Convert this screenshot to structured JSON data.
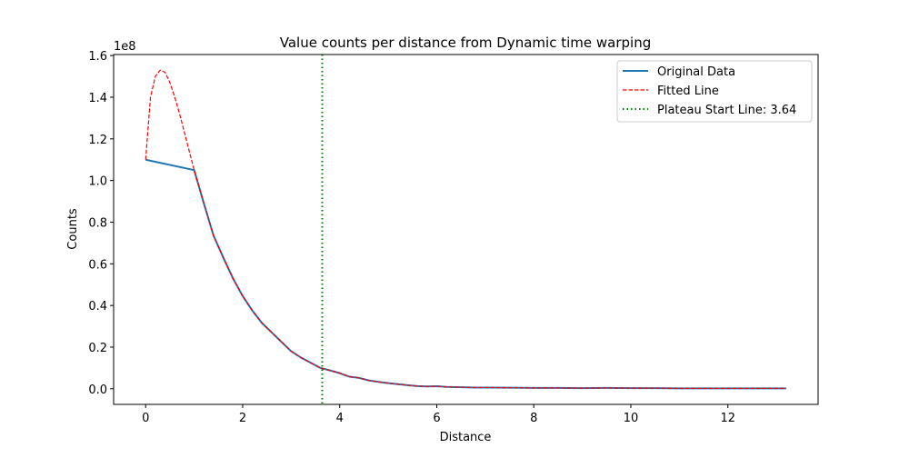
{
  "chart_data": {
    "type": "line",
    "title": "Value counts per distance from Dynamic time warping",
    "xlabel": "Distance",
    "ylabel": "Counts",
    "y_offset_label": "1e8",
    "xlim": [
      -0.66,
      13.86
    ],
    "ylim": [
      -0.075,
      1.605
    ],
    "y_scale": 100000000,
    "x_ticks": [
      0,
      2,
      4,
      6,
      8,
      10,
      12
    ],
    "y_ticks": [
      0.0,
      0.2,
      0.4,
      0.6,
      0.8,
      1.0,
      1.2,
      1.4,
      1.6
    ],
    "x_tick_labels": [
      "0",
      "2",
      "4",
      "6",
      "8",
      "10",
      "12"
    ],
    "y_tick_labels": [
      "0.0",
      "0.2",
      "0.4",
      "0.6",
      "0.8",
      "1.0",
      "1.2",
      "1.4",
      "1.6"
    ],
    "legend_position": "top-right",
    "colors": {
      "original": "#1f77b4",
      "fitted": "#ff0000",
      "plateau": "#008000"
    },
    "series": [
      {
        "name": "Original Data",
        "style": "solid",
        "x": [
          0,
          1.0,
          1.2,
          1.4,
          1.6,
          1.8,
          2.0,
          2.2,
          2.4,
          2.6,
          2.8,
          3.0,
          3.2,
          3.4,
          3.6,
          3.8,
          4.0,
          4.2,
          4.4,
          4.6,
          4.8,
          5.0,
          5.2,
          5.4,
          5.6,
          5.8,
          6.0,
          6.2,
          6.4,
          6.6,
          6.8,
          7.0,
          7.5,
          8.0,
          8.5,
          9.0,
          9.5,
          10.0,
          10.5,
          11.0,
          11.5,
          12.0,
          12.5,
          13.2
        ],
        "y": [
          1.1,
          1.05,
          0.89,
          0.735,
          0.63,
          0.53,
          0.445,
          0.375,
          0.315,
          0.27,
          0.225,
          0.18,
          0.15,
          0.125,
          0.1,
          0.088,
          0.075,
          0.058,
          0.052,
          0.04,
          0.033,
          0.027,
          0.022,
          0.017,
          0.013,
          0.011,
          0.012,
          0.009,
          0.008,
          0.007,
          0.006,
          0.006,
          0.005,
          0.004,
          0.004,
          0.003,
          0.004,
          0.003,
          0.003,
          0.002,
          0.002,
          0.002,
          0.002,
          0.002
        ]
      },
      {
        "name": "Fitted Line",
        "style": "dashed",
        "x": [
          0,
          0.1,
          0.2,
          0.3,
          0.4,
          0.5,
          0.6,
          0.7,
          0.8,
          0.9,
          1.0,
          1.2,
          1.4,
          1.6,
          1.8,
          2.0,
          2.2,
          2.4,
          2.6,
          2.8,
          3.0,
          3.2,
          3.4,
          3.6,
          3.8,
          4.0,
          4.2,
          4.4,
          4.6,
          4.8,
          5.0,
          5.2,
          5.4,
          5.6,
          5.8,
          6.0,
          6.2,
          6.4,
          6.6,
          6.8,
          7.0,
          7.5,
          8.0,
          8.5,
          9.0,
          9.5,
          10.0,
          10.5,
          11.0,
          11.5,
          12.0,
          12.5,
          13.2
        ],
        "y": [
          1.1,
          1.4,
          1.5,
          1.53,
          1.52,
          1.47,
          1.4,
          1.32,
          1.23,
          1.14,
          1.05,
          0.89,
          0.735,
          0.63,
          0.53,
          0.445,
          0.375,
          0.315,
          0.27,
          0.225,
          0.18,
          0.15,
          0.125,
          0.1,
          0.088,
          0.075,
          0.058,
          0.052,
          0.04,
          0.033,
          0.027,
          0.022,
          0.017,
          0.013,
          0.011,
          0.012,
          0.009,
          0.008,
          0.007,
          0.006,
          0.006,
          0.005,
          0.004,
          0.004,
          0.003,
          0.004,
          0.003,
          0.003,
          0.002,
          0.002,
          0.002,
          0.002,
          0.002
        ]
      }
    ],
    "vertical_line": {
      "name": "Plateau Start Line: 3.64",
      "x": 3.64,
      "style": "dotted"
    }
  }
}
